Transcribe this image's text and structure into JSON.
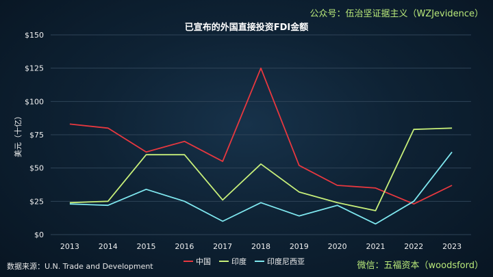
{
  "credit_top": "公众号：伍治坚证据主义（WZJevidence）",
  "credit_bottom": "微信：五福资本（woodsford）",
  "source": "数据来源：U.N. Trade and Development",
  "colors": {
    "中国": "#e8383f",
    "印度": "#c8f07a",
    "印度尼西亚": "#7fe8f0"
  },
  "chart_data": {
    "type": "line",
    "title": "已宣布的外国直接投资FDI金额",
    "ylabel": "美元（十亿）",
    "xlabel": "",
    "ylim": [
      0,
      150
    ],
    "yticks": [
      "$0",
      "$25",
      "$50",
      "$75",
      "$100",
      "$125",
      "$150"
    ],
    "ytick_values": [
      0,
      25,
      50,
      75,
      100,
      125,
      150
    ],
    "x": [
      "2013",
      "2014",
      "2015",
      "2016",
      "2017",
      "2018",
      "2019",
      "2020",
      "2021",
      "2022",
      "2023"
    ],
    "grid": "horizontal",
    "legend_position": "bottom",
    "series": [
      {
        "name": "中国",
        "values": [
          83,
          80,
          62,
          70,
          55,
          125,
          52,
          37,
          35,
          23,
          37
        ]
      },
      {
        "name": "印度",
        "values": [
          24,
          25,
          60,
          60,
          26,
          53,
          32,
          24,
          18,
          79,
          80
        ]
      },
      {
        "name": "印度尼西亚",
        "values": [
          23,
          22,
          34,
          25,
          10,
          24,
          14,
          22,
          8,
          25,
          62
        ]
      }
    ]
  }
}
